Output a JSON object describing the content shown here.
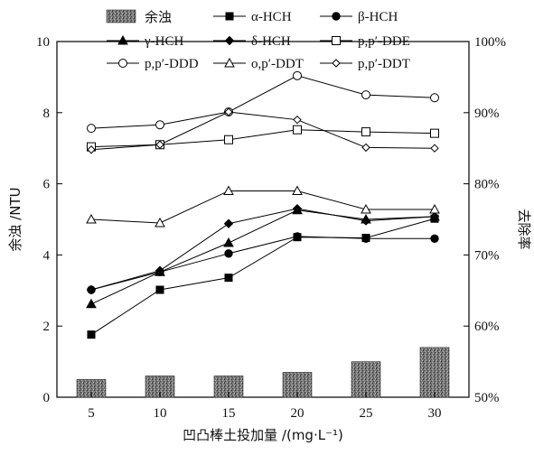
{
  "chart_data": {
    "type": "bar",
    "categories": [
      "5",
      "10",
      "15",
      "20",
      "25",
      "30"
    ],
    "xlabel": "凹凸棒土投加量 /(mg·L⁻¹)",
    "ylabel_left": "余浊 /NTU",
    "ylabel_right": "去除率",
    "ylim_left": [
      0,
      10
    ],
    "ylim_right": [
      50,
      100
    ],
    "yticks_left": [
      "0",
      "2",
      "4",
      "6",
      "8",
      "10"
    ],
    "yticks_right": [
      "50%",
      "60%",
      "70%",
      "80%",
      "90%",
      "100%"
    ],
    "grid": false,
    "legend_position": "top",
    "bar_series": {
      "name": "余浊",
      "axis": "left",
      "values": [
        0.5,
        0.6,
        0.6,
        0.7,
        1.0,
        1.4
      ]
    },
    "series": [
      {
        "name": "α-HCH",
        "axis": "right",
        "marker": "filled-square",
        "values": [
          58.8,
          65.1,
          66.8,
          72.5,
          72.4,
          75.1
        ]
      },
      {
        "name": "β-HCH",
        "axis": "right",
        "marker": "filled-circle",
        "values": [
          65.1,
          67.6,
          70.2,
          72.6,
          72.3,
          72.3
        ]
      },
      {
        "name": "γ-HCH",
        "axis": "right",
        "marker": "filled-triangle",
        "values": [
          63.1,
          67.6,
          71.7,
          76.3,
          75.0,
          75.4
        ]
      },
      {
        "name": "δ-HCH",
        "axis": "right",
        "marker": "filled-diamond",
        "values": [
          65.1,
          67.8,
          74.4,
          76.5,
          74.8,
          75.4
        ]
      },
      {
        "name": "p,p′-DDE",
        "axis": "right",
        "marker": "open-square",
        "values": [
          85.2,
          85.5,
          86.2,
          87.6,
          87.3,
          87.1
        ]
      },
      {
        "name": "p,p′-DDD",
        "axis": "right",
        "marker": "open-circle",
        "values": [
          87.8,
          88.3,
          90.1,
          95.2,
          92.5,
          92.1
        ]
      },
      {
        "name": "o,p′-DDT",
        "axis": "right",
        "marker": "open-triangle",
        "values": [
          75.0,
          74.5,
          79.0,
          79.0,
          76.4,
          76.4
        ]
      },
      {
        "name": "p,p′-DDT",
        "axis": "right",
        "marker": "open-diamond",
        "values": [
          84.8,
          85.5,
          90.1,
          89.0,
          85.1,
          85.0
        ]
      }
    ]
  }
}
